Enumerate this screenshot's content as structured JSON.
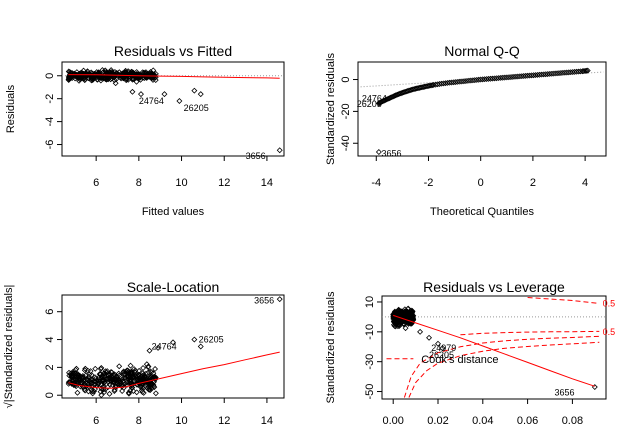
{
  "chart_data": [
    {
      "id": "rvf",
      "type": "scatter",
      "title": "Residuals vs Fitted",
      "xlabel": "Fitted values",
      "ylabel": "Residuals",
      "xlim": [
        4.4,
        14.8
      ],
      "ylim": [
        -7.0,
        1.2
      ],
      "xticks": [
        6,
        8,
        10,
        12,
        14
      ],
      "yticks": [
        0,
        -2,
        -4,
        -6
      ],
      "cloud": {
        "x_from": 4.7,
        "x_to": 8.8,
        "y_center": 0.0,
        "y_spread": 0.45
      },
      "outlier_points": [
        [
          7.7,
          -1.4
        ],
        [
          8.1,
          -1.6
        ],
        [
          9.2,
          -1.6
        ],
        [
          10.6,
          -1.3
        ],
        [
          10.9,
          -1.6
        ],
        [
          9.9,
          -2.2
        ],
        [
          14.6,
          -6.5
        ]
      ],
      "smooth_line": {
        "x": [
          4.7,
          6,
          7,
          8,
          9,
          10,
          11,
          12,
          13,
          14,
          14.6
        ],
        "y": [
          0.1,
          0.08,
          0.05,
          0.0,
          -0.03,
          -0.06,
          -0.1,
          -0.13,
          -0.16,
          -0.19,
          -0.21
        ]
      },
      "labels": [
        {
          "text": "24764",
          "x": 8.0,
          "y": -2.2
        },
        {
          "text": "26205",
          "x": 10.1,
          "y": -2.8
        },
        {
          "text": "3656",
          "x": 13.0,
          "y": -7.0
        }
      ]
    },
    {
      "id": "qq",
      "type": "scatter",
      "title": "Normal Q-Q",
      "xlabel": "Theoretical Quantiles",
      "ylabel": "Standardized residuals",
      "xlim": [
        -4.7,
        4.8
      ],
      "ylim": [
        -48,
        11
      ],
      "xticks": [
        -4,
        -2,
        0,
        2,
        4
      ],
      "yticks": [
        0,
        -20,
        -40
      ],
      "curve": {
        "x": [
          -3.9,
          -3.8,
          -3.6,
          -3.4,
          -3.2,
          -3.0,
          -2.8,
          -2.6,
          -2.4,
          -2.2,
          -2.0,
          -1.8,
          -1.5,
          -1.2,
          -0.9,
          -0.6,
          -0.3,
          0.0,
          0.3,
          0.6,
          0.9,
          1.2,
          1.5,
          1.8,
          2.1,
          2.4,
          2.7,
          3.0,
          3.3,
          3.6,
          3.9,
          4.1
        ],
        "y": [
          -15,
          -14,
          -12.5,
          -11,
          -9.5,
          -8.3,
          -7.2,
          -6.2,
          -5.4,
          -4.7,
          -4.0,
          -3.4,
          -2.6,
          -2.0,
          -1.5,
          -1.0,
          -0.5,
          0.0,
          0.4,
          0.8,
          1.2,
          1.6,
          2.0,
          2.4,
          2.8,
          3.2,
          3.6,
          4.0,
          4.4,
          4.8,
          5.2,
          5.6
        ]
      },
      "outlier_points": [
        [
          -3.9,
          -45.5
        ]
      ],
      "reference_line": {
        "x": [
          -4.6,
          4.7
        ],
        "y": [
          -4.6,
          4.7
        ]
      },
      "labels": [
        {
          "text": "24764",
          "x": -4.55,
          "y": -12
        },
        {
          "text": "26205",
          "x": -4.75,
          "y": -15.5
        },
        {
          "text": "3656",
          "x": -3.8,
          "y": -46.5
        }
      ]
    },
    {
      "id": "sl",
      "type": "scatter",
      "title": "Scale-Location",
      "xlabel": "",
      "ylabel": "√|Standardized residuals|",
      "xlim": [
        4.4,
        14.8
      ],
      "ylim": [
        -0.2,
        7.2
      ],
      "xticks": [
        6,
        8,
        10,
        12,
        14
      ],
      "yticks": [
        0,
        2,
        4,
        6
      ],
      "cloud": {
        "x_from": 4.7,
        "x_to": 8.8,
        "y_center": 1.1,
        "y_spread": 0.9
      },
      "outlier_points": [
        [
          8.5,
          3.2
        ],
        [
          8.9,
          3.4
        ],
        [
          9.6,
          3.8
        ],
        [
          10.6,
          4.0
        ],
        [
          10.9,
          3.5
        ],
        [
          14.6,
          6.9
        ]
      ],
      "smooth_line": {
        "x": [
          4.7,
          5.2,
          6,
          6.7,
          7.4,
          8,
          9,
          10,
          11,
          12,
          13,
          14,
          14.6
        ],
        "y": [
          0.9,
          0.7,
          0.55,
          0.5,
          0.6,
          0.85,
          1.2,
          1.55,
          1.9,
          2.2,
          2.55,
          2.9,
          3.1
        ]
      },
      "labels": [
        {
          "text": "24764",
          "x": 8.6,
          "y": 3.5
        },
        {
          "text": "26205",
          "x": 10.8,
          "y": 4.0
        },
        {
          "text": "3656",
          "x": 13.4,
          "y": 6.8
        }
      ]
    },
    {
      "id": "rvl",
      "type": "scatter",
      "title": "Residuals vs Leverage",
      "xlabel": "",
      "ylabel": "Standardized residuals",
      "xlim": [
        -0.005,
        0.095
      ],
      "ylim": [
        -55,
        14
      ],
      "xticks": [
        0.0,
        0.02,
        0.04,
        0.06,
        0.08
      ],
      "xtick_labels": [
        "0.00",
        "0.02",
        "0.04",
        "0.06",
        "0.08"
      ],
      "yticks": [
        10,
        -10,
        -30,
        -50
      ],
      "cloud": {
        "x_from": 0.0,
        "x_to": 0.009,
        "y_center": 0.0,
        "y_spread": 5.0
      },
      "outlier_points": [
        [
          0.012,
          -10
        ],
        [
          0.016,
          -14
        ],
        [
          0.02,
          -18
        ],
        [
          0.022,
          -21
        ],
        [
          0.09,
          -47
        ]
      ],
      "smooth_line": {
        "x": [
          0.0,
          0.01,
          0.02,
          0.03,
          0.04,
          0.05,
          0.06,
          0.07,
          0.08,
          0.09
        ],
        "y": [
          1,
          -4,
          -9,
          -14,
          -19.5,
          -25,
          -30.5,
          -36,
          -41.5,
          -46.5
        ]
      },
      "cooks_lines": [
        {
          "x": [
            0.007,
            0.01,
            0.015,
            0.02,
            0.03,
            0.04,
            0.05,
            0.06,
            0.07,
            0.08,
            0.092
          ],
          "y": [
            -54,
            -44,
            -36,
            -31,
            -26,
            -23,
            -21,
            -19.8,
            -18.8,
            -18,
            -17
          ]
        },
        {
          "x": [
            0.005,
            0.008,
            0.012,
            0.02,
            0.03,
            0.04,
            0.05,
            0.06,
            0.07,
            0.08,
            0.092
          ],
          "y": [
            -54,
            -40,
            -31,
            -24,
            -20,
            -17.5,
            -16,
            -15,
            -14.3,
            -13.8,
            -13
          ]
        },
        {
          "x": [
            0.03,
            0.04,
            0.05,
            0.06,
            0.07,
            0.08,
            0.092
          ],
          "y": [
            -12,
            -11,
            -10.5,
            -10.2,
            -10,
            -9.9,
            -9.7
          ]
        },
        {
          "x": [
            0.06,
            0.07,
            0.08,
            0.092
          ],
          "y": [
            13,
            12,
            11,
            9
          ]
        }
      ],
      "cooks_labels": [
        {
          "text": "0.5",
          "x": 0.0935,
          "y": 9
        },
        {
          "text": "0.5",
          "x": 0.0935,
          "y": -10
        }
      ],
      "legend_line": {
        "x": [
          -0.003,
          0.009
        ],
        "y": -28
      },
      "legend_text": {
        "text": "Cook's distance",
        "x": 0.0125,
        "y": -31
      },
      "labels": [
        {
          "text": "24979",
          "x": 0.017,
          "y": -21
        },
        {
          "text": "26205",
          "x": 0.016,
          "y": -25.5
        },
        {
          "text": "3656",
          "x": 0.072,
          "y": -50.5
        }
      ]
    }
  ]
}
